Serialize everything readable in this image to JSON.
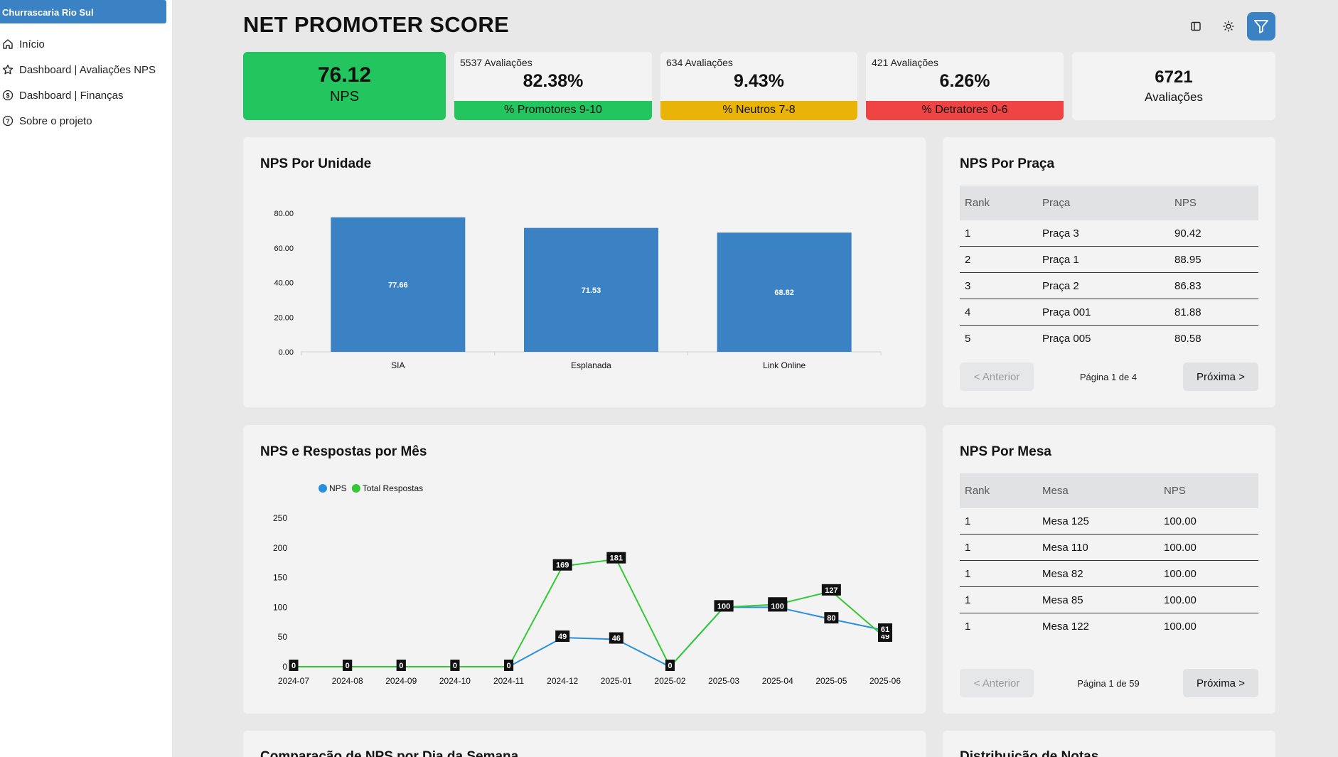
{
  "sidebar": {
    "brand": "Churrascaria Rio Sul",
    "items": [
      {
        "label": "Início",
        "icon": "home-icon"
      },
      {
        "label": "Dashboard | Avaliações NPS",
        "icon": "star-icon"
      },
      {
        "label": "Dashboard | Finanças",
        "icon": "dollar-circle-icon"
      },
      {
        "label": "Sobre o projeto",
        "icon": "help-circle-icon"
      }
    ]
  },
  "header": {
    "title": "NET PROMOTER SCORE",
    "icons": [
      "sidebar-toggle-icon",
      "sun-icon",
      "filter-icon"
    ]
  },
  "kpis": {
    "nps": {
      "value": "76.12",
      "label": "NPS",
      "color": "#22c55e"
    },
    "promoters": {
      "count": "5537 Avaliações",
      "pct": "82.38%",
      "label": "% Promotores 9-10",
      "color": "#22c55e"
    },
    "neutrals": {
      "count": "634 Avaliações",
      "pct": "9.43%",
      "label": "% Neutros 7-8",
      "color": "#eab308"
    },
    "detractors": {
      "count": "421 Avaliações",
      "pct": "6.26%",
      "label": "% Detratores 0-6",
      "color": "#ef4444"
    },
    "total": {
      "value": "6721",
      "label": "Avaliações"
    }
  },
  "panels": {
    "unidade": {
      "title": "NPS Por Unidade"
    },
    "praca": {
      "title": "NPS Por Praça",
      "headers": [
        "Rank",
        "Praça",
        "NPS"
      ],
      "rows": [
        [
          "1",
          "Praça 3",
          "90.42"
        ],
        [
          "2",
          "Praça 1",
          "88.95"
        ],
        [
          "3",
          "Praça 2",
          "86.83"
        ],
        [
          "4",
          "Praça 001",
          "81.88"
        ],
        [
          "5",
          "Praça 005",
          "80.58"
        ]
      ],
      "prev": "< Anterior",
      "page": "Página 1 de 4",
      "next": "Próxima >"
    },
    "mes": {
      "title": "NPS e Respostas por Mês"
    },
    "mesa": {
      "title": "NPS Por Mesa",
      "headers": [
        "Rank",
        "Mesa",
        "NPS"
      ],
      "rows": [
        [
          "1",
          "Mesa 125",
          "100.00"
        ],
        [
          "1",
          "Mesa 110",
          "100.00"
        ],
        [
          "1",
          "Mesa 82",
          "100.00"
        ],
        [
          "1",
          "Mesa 85",
          "100.00"
        ],
        [
          "1",
          "Mesa 122",
          "100.00"
        ]
      ],
      "prev": "< Anterior",
      "page": "Página 1 de 59",
      "next": "Próxima >"
    },
    "semana": {
      "title": "Comparação de NPS por Dia da Semana"
    },
    "distribuicao": {
      "title": "Distribuição de Notas"
    }
  },
  "chart_data": [
    {
      "type": "bar",
      "title": "NPS Por Unidade",
      "categories": [
        "SIA",
        "Esplanada",
        "Link Online"
      ],
      "values": [
        77.66,
        71.53,
        68.82
      ],
      "value_labels": [
        "77.66",
        "71.53",
        "68.82"
      ],
      "yticks": [
        "0.00",
        "20.00",
        "40.00",
        "60.00",
        "80.00"
      ],
      "ylim": [
        0,
        80
      ],
      "color": "#3b82c4",
      "grid": false
    },
    {
      "type": "line",
      "title": "NPS e Respostas por Mês",
      "x": [
        "2024-07",
        "2024-08",
        "2024-09",
        "2024-10",
        "2024-11",
        "2024-12",
        "2025-01",
        "2025-02",
        "2025-03",
        "2025-04",
        "2025-05",
        "2025-06"
      ],
      "series": [
        {
          "name": "NPS",
          "color": "#2b8fe0",
          "values": [
            0,
            0,
            0,
            0,
            0,
            49,
            46,
            0,
            100,
            100,
            80,
            61
          ]
        },
        {
          "name": "Total Respostas",
          "color": "#34c934",
          "values": [
            0,
            0,
            0,
            0,
            0,
            169,
            181,
            0,
            100,
            105,
            127,
            49
          ]
        }
      ],
      "yticks": [
        "0",
        "50",
        "100",
        "150",
        "200",
        "250"
      ],
      "ylim": [
        0,
        250
      ],
      "legend": "top-left",
      "grid": false
    }
  ]
}
